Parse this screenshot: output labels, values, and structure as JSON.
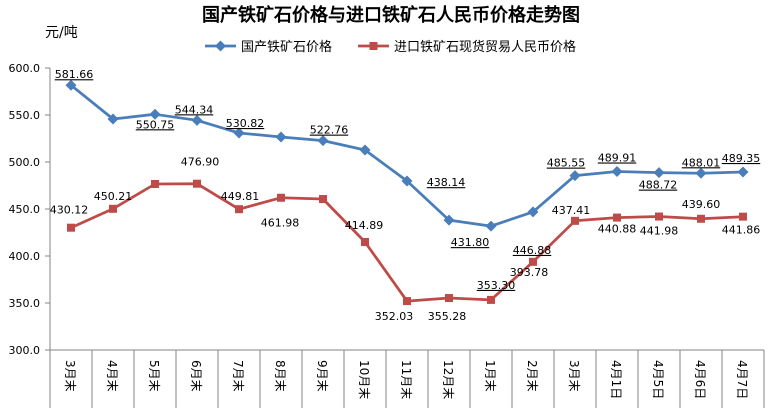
{
  "chart_data": {
    "type": "line",
    "title": "国产铁矿石价格与进口铁矿石人民币价格走势图",
    "xlabel": "",
    "ylabel": "元/吨",
    "categories": [
      "3月末",
      "4月末",
      "5月末",
      "6月末",
      "7月末",
      "8月末",
      "9月末",
      "10月末",
      "11月末",
      "12月末",
      "1月末",
      "2月末",
      "3月末",
      "4月1日",
      "4月5日",
      "4月6日",
      "4月7日"
    ],
    "ylim": [
      300,
      600
    ],
    "yticks": [
      "300.0",
      "350.0",
      "400.0",
      "450.0",
      "500.0",
      "550.0",
      "600.0"
    ],
    "grid": false,
    "legend_position": "top",
    "series": [
      {
        "name": "国产铁矿石价格",
        "color": "#4A7EBB",
        "marker": "diamond",
        "values": [
          581.66,
          545.7,
          550.75,
          544.34,
          530.82,
          526.6,
          522.76,
          512.8,
          479.8,
          438.14,
          431.8,
          446.88,
          485.55,
          489.91,
          488.72,
          488.01,
          489.35
        ],
        "data_labels": [
          "581.66",
          null,
          "550.75",
          "544.34",
          "530.82",
          null,
          "522.76",
          null,
          null,
          "438.14",
          "431.80",
          "446.88",
          "485.55",
          "489.91",
          "488.72",
          "488.01",
          "489.35"
        ]
      },
      {
        "name": "进口铁矿石现货贸易人民币价格",
        "color": "#BE4B48",
        "marker": "square",
        "values": [
          430.12,
          450.21,
          476.6,
          476.9,
          449.81,
          461.98,
          460.6,
          414.89,
          352.03,
          355.28,
          353.3,
          393.78,
          437.41,
          440.88,
          441.98,
          439.6,
          441.86
        ],
        "data_labels": [
          "430.12",
          "450.21",
          null,
          "476.90",
          "449.81",
          "461.98",
          null,
          "414.89",
          "352.03",
          "355.28",
          "353.30",
          "393.78",
          "437.41",
          "440.88",
          "441.98",
          "439.60",
          "441.86"
        ]
      }
    ]
  }
}
